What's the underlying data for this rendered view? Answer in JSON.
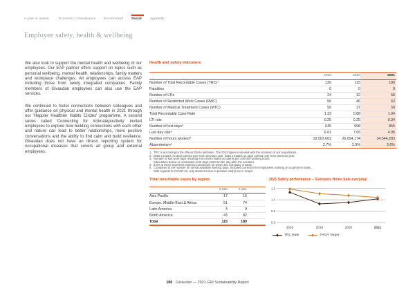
{
  "nav": {
    "items": [
      {
        "label": "A year in review",
        "active": false
      },
      {
        "label": "Economic / Governance",
        "active": false
      },
      {
        "label": "Environment",
        "active": false
      },
      {
        "label": "Social",
        "active": true
      },
      {
        "label": "Appendix",
        "active": false
      }
    ]
  },
  "page": {
    "title": "Employee safety, health & wellbeing"
  },
  "article": {
    "paragraphs": [
      "We also look to support the mental health and wellbeing of our employees. Our EAP partner offers support on topics such as personal wellbeing, mental health, relationships, family matters and workplace challenges. All employees can access EAP including those from newly integrated companies. Family members of Givaudan employees can also use the EAP services.",
      "We continued to foster connections between colleagues and offer guidance on physical and mental health in 2021 through our 'Happier Healthier Habits Circles' programme. A second series called 'Connecting for #climatepositivity' invited employees to explore how building connections with each other and nature can lead to better relationships, more positive conversations and the ability to find calm and build resilience. Givaudan does not have an illness reporting system for occupational diseases that covers all group and external employees."
    ]
  },
  "health_safety_table": {
    "title": "Health and safety indicators",
    "columns": [
      "2018",
      "2020",
      "2021"
    ],
    "rows": [
      {
        "label": "Number of Total Recordable Cases (TRC)¹",
        "values": [
          "130",
          "115",
          "180"
        ]
      },
      {
        "label": "Fatalities",
        "values": [
          "0",
          "0",
          "0"
        ]
      },
      {
        "label": "Number of LTIs",
        "values": [
          "24",
          "32",
          "59"
        ]
      },
      {
        "label": "Number of Restricted Work Cases (RWC)",
        "values": [
          "56",
          "46",
          "63"
        ]
      },
      {
        "label": "Number of Medical Treatment Cases (MTC)",
        "values": [
          "50",
          "37",
          "58"
        ]
      },
      {
        "label": "Total Recordable Case Rate",
        "values": [
          "1.33",
          "0.88",
          "1.04"
        ]
      },
      {
        "label": "LTI rate",
        "values": [
          "0.25",
          "0.25",
          "0.34"
        ]
      },
      {
        "label": "Number of lost days²",
        "values": [
          "645",
          "998",
          "855"
        ]
      },
      {
        "label": "Lost day rate³",
        "values": [
          "6.61",
          "7.65",
          "4.95"
        ]
      },
      {
        "label": "Number of hours worked⁴",
        "values": [
          "19,503,663",
          "26,094,174",
          "34,544,283"
        ]
      },
      {
        "label": "Absenteeism⁵",
        "values": [
          "2.7%",
          "2.9%",
          "3.6%"
        ]
      }
    ],
    "footnotes": [
      {
        "num": "1.",
        "text": "TRC is according to the official OSHA definition. The 2021 figure increased with the inclusion of our acquisitions."
      },
      {
        "num": "2.",
        "text": "2020 includes 72 days carried over from previous year. 2021 includes 11 days carried over from previous year."
      },
      {
        "num": "3.",
        "text": "Number of lost work days resulting from work-related accidents per 200,000 working hours."
      },
      {
        "num": "",
        "text": "Calculation based on scheduled work days lost from the day after the accident."
      },
      {
        "num": "4.",
        "text": "8.9% of these represent external contractors for whom the Company is liable."
      },
      {
        "num": "5.",
        "text": "Compared to the number of normal available working days. Includes correction for employees working on a part-time basis."
      },
      {
        "num": "",
        "text": "With regards to COVID-19, only absences due to positive test(s) are in scope."
      }
    ]
  },
  "region_table": {
    "title": "Total recordable cases by region",
    "columns": [
      "2,020",
      "2,021"
    ],
    "rows": [
      {
        "label": "Asia Pacific",
        "values": [
          "17",
          "15"
        ],
        "bold": false
      },
      {
        "label": "Europe, Middle-East & Africa",
        "values": [
          "51",
          "74"
        ],
        "bold": false
      },
      {
        "label": "Latin America",
        "values": [
          "4",
          "9"
        ],
        "bold": false
      },
      {
        "label": "North America",
        "values": [
          "43",
          "82"
        ],
        "bold": false
      },
      {
        "label": "Total",
        "values": [
          "115",
          "180"
        ],
        "bold": true
      }
    ]
  },
  "chart_data": {
    "type": "line",
    "title": "2021 Safety performance – 'Everyone Home Safe everyday'",
    "categories": [
      "2018",
      "2019",
      "2020",
      "2021"
    ],
    "series": [
      {
        "name": "TRC Rate",
        "color": "#4a2413",
        "values": [
          1.33,
          0.82,
          0.88,
          1.04
        ]
      },
      {
        "name": "TRCR Target",
        "color": "#c5802f",
        "values": [
          1.47,
          1.27,
          1.19,
          1.1
        ]
      }
    ],
    "xlabel": "",
    "ylabel": "",
    "ylim": [
      0,
      1.5
    ],
    "yticks": [
      0,
      0.5,
      1,
      1.5
    ],
    "grid": true,
    "legend_position": "bottom"
  },
  "footer": {
    "page_number": "100",
    "text": "Givaudan — 2021 GRI Sustainability Report"
  },
  "colors": {
    "accent": "#e14b0e",
    "nav_active_bar": "#e73a0e",
    "highlight_column_bg": "#fae5d8"
  }
}
